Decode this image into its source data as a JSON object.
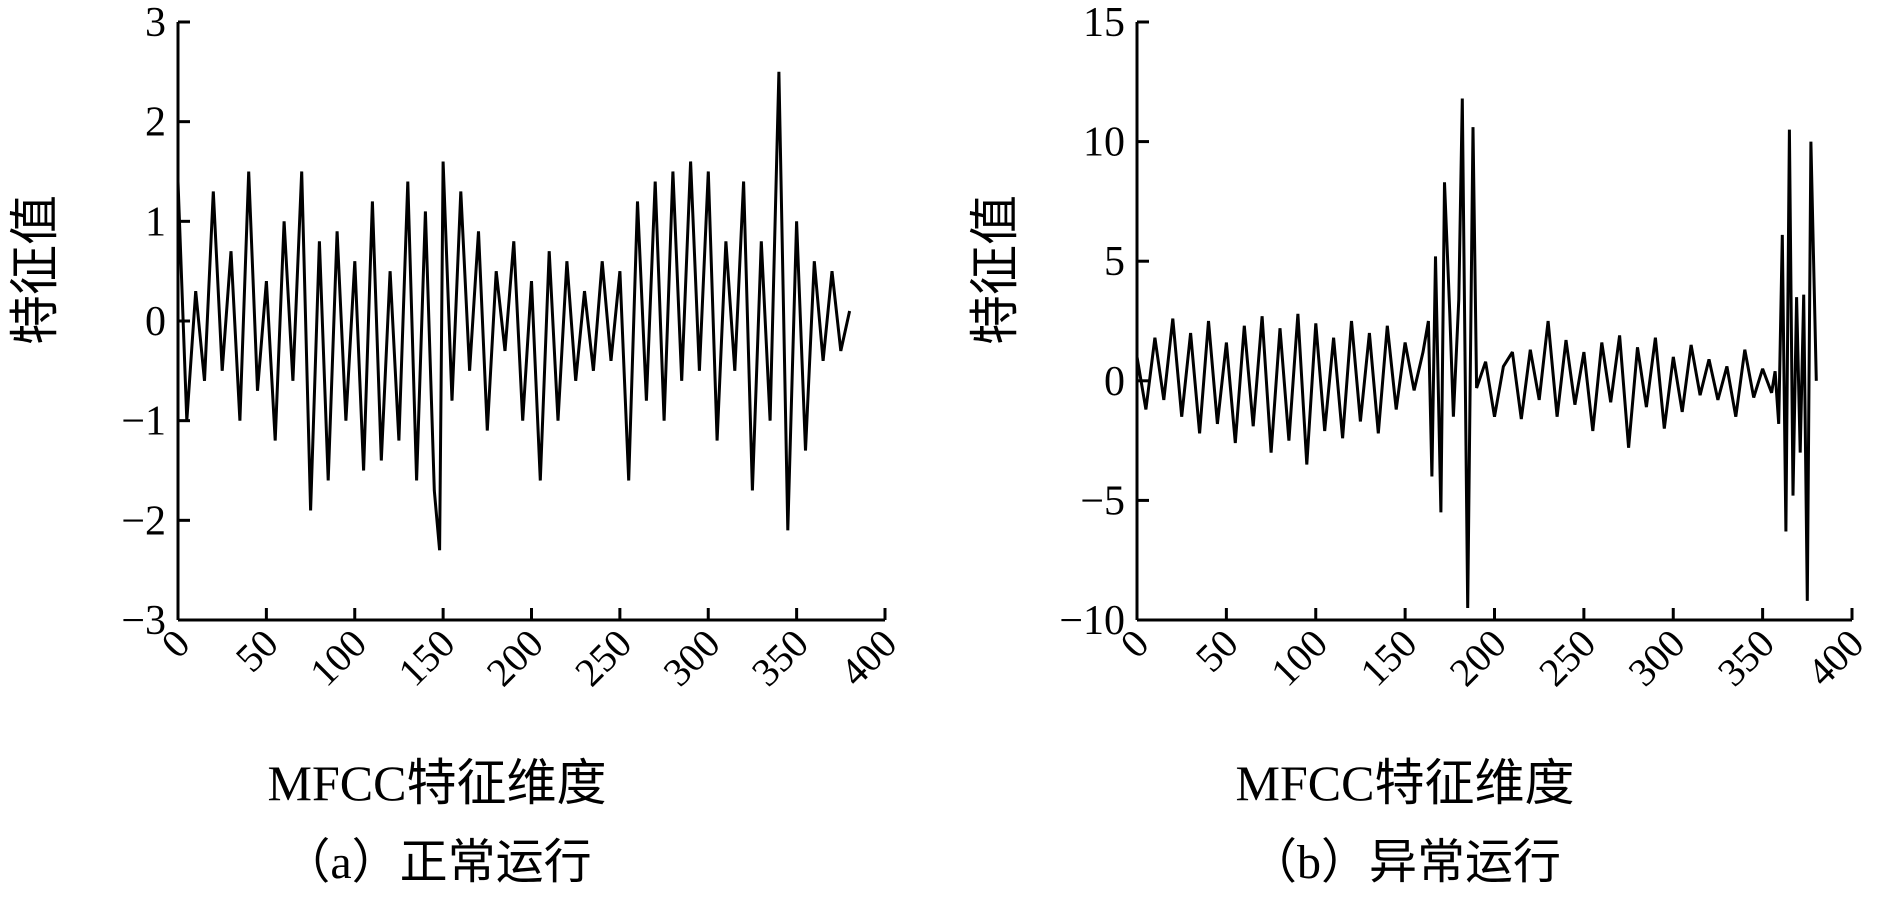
{
  "chart_data": [
    {
      "type": "line",
      "caption": "（a）正常运行",
      "xlabel": "MFCC特征维度",
      "ylabel": "特征值",
      "xlim": [
        0,
        400
      ],
      "ylim": [
        -3,
        3
      ],
      "xticks": [
        0,
        50,
        100,
        150,
        200,
        250,
        300,
        350,
        400
      ],
      "yticks": [
        -3,
        -2,
        -1,
        0,
        1,
        2,
        3
      ],
      "ytick_labels": [
        "−3",
        "−2",
        "−1",
        "0",
        "1",
        "2",
        "3"
      ],
      "color": "#000000",
      "series": [
        {
          "x": [
            0,
            5,
            10,
            15,
            20,
            25,
            30,
            35,
            40,
            45,
            50,
            55,
            60,
            65,
            70,
            75,
            80,
            85,
            90,
            95,
            100,
            105,
            110,
            115,
            120,
            125,
            130,
            135,
            140,
            145,
            148,
            150,
            155,
            160,
            165,
            170,
            175,
            180,
            185,
            190,
            195,
            200,
            205,
            210,
            215,
            220,
            225,
            230,
            235,
            240,
            245,
            250,
            255,
            260,
            265,
            270,
            275,
            280,
            285,
            290,
            295,
            300,
            305,
            310,
            315,
            320,
            325,
            330,
            335,
            340,
            345,
            350,
            355,
            360,
            365,
            370,
            375,
            380
          ],
          "values": [
            1.4,
            -1.0,
            0.3,
            -0.6,
            1.3,
            -0.5,
            0.7,
            -1.0,
            1.5,
            -0.7,
            0.4,
            -1.2,
            1.0,
            -0.6,
            1.5,
            -1.9,
            0.8,
            -1.6,
            0.9,
            -1.0,
            0.6,
            -1.5,
            1.2,
            -1.4,
            0.5,
            -1.2,
            1.4,
            -1.6,
            1.1,
            -1.7,
            -2.3,
            1.6,
            -0.8,
            1.3,
            -0.5,
            0.9,
            -1.1,
            0.5,
            -0.3,
            0.8,
            -1.0,
            0.4,
            -1.6,
            0.7,
            -1.0,
            0.6,
            -0.6,
            0.3,
            -0.5,
            0.6,
            -0.4,
            0.5,
            -1.6,
            1.2,
            -0.8,
            1.4,
            -1.0,
            1.5,
            -0.6,
            1.6,
            -0.5,
            1.5,
            -1.2,
            0.8,
            -0.5,
            1.4,
            -1.7,
            0.8,
            -1.0,
            2.5,
            -2.1,
            1.0,
            -1.3,
            0.6,
            -0.4,
            0.5,
            -0.3,
            0.1
          ]
        }
      ]
    },
    {
      "type": "line",
      "caption": "（b）异常运行",
      "xlabel": "MFCC特征维度",
      "ylabel": "特征值",
      "xlim": [
        0,
        400
      ],
      "ylim": [
        -10,
        15
      ],
      "xticks": [
        0,
        50,
        100,
        150,
        200,
        250,
        300,
        350,
        400
      ],
      "yticks": [
        -10,
        -5,
        0,
        5,
        10,
        15
      ],
      "ytick_labels": [
        "−10",
        "−5",
        "0",
        "5",
        "10",
        "15"
      ],
      "color": "#000000",
      "series": [
        {
          "x": [
            0,
            5,
            10,
            15,
            20,
            25,
            30,
            35,
            40,
            45,
            50,
            55,
            60,
            65,
            70,
            75,
            80,
            85,
            90,
            95,
            100,
            105,
            110,
            115,
            120,
            125,
            130,
            135,
            140,
            145,
            150,
            155,
            160,
            163,
            165,
            167,
            170,
            172,
            175,
            177,
            180,
            182,
            185,
            188,
            190,
            195,
            200,
            205,
            210,
            215,
            220,
            225,
            230,
            235,
            240,
            245,
            250,
            255,
            260,
            265,
            270,
            275,
            280,
            285,
            290,
            295,
            300,
            305,
            310,
            315,
            320,
            325,
            330,
            335,
            340,
            345,
            350,
            355,
            357,
            359,
            361,
            363,
            365,
            367,
            369,
            371,
            373,
            375,
            377,
            380
          ],
          "values": [
            1.0,
            -1.2,
            1.8,
            -0.8,
            2.6,
            -1.5,
            2.0,
            -2.2,
            2.5,
            -1.8,
            1.6,
            -2.6,
            2.3,
            -1.9,
            2.7,
            -3.0,
            2.2,
            -2.5,
            2.8,
            -3.5,
            2.4,
            -2.1,
            1.8,
            -2.4,
            2.5,
            -1.7,
            2.0,
            -2.2,
            2.3,
            -1.2,
            1.6,
            -0.4,
            1.2,
            2.5,
            -4.0,
            5.2,
            -5.5,
            8.3,
            2.8,
            -1.5,
            3.4,
            11.8,
            -9.5,
            10.6,
            -0.3,
            0.8,
            -1.5,
            0.6,
            1.2,
            -1.6,
            1.3,
            -0.8,
            2.5,
            -1.5,
            1.7,
            -1.0,
            1.2,
            -2.1,
            1.6,
            -0.9,
            1.9,
            -2.8,
            1.4,
            -1.1,
            1.8,
            -2.0,
            1.0,
            -1.3,
            1.5,
            -0.6,
            0.9,
            -0.8,
            0.6,
            -1.5,
            1.3,
            -0.7,
            0.5,
            -0.5,
            0.4,
            -1.8,
            6.1,
            -6.3,
            10.5,
            -4.8,
            3.5,
            -3.0,
            3.6,
            -9.2,
            10.0,
            0.0
          ]
        }
      ]
    }
  ]
}
